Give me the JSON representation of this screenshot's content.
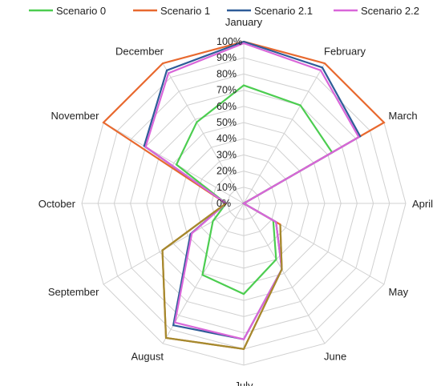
{
  "chart_data": {
    "type": "radar",
    "title": "",
    "categories": [
      "January",
      "February",
      "March",
      "April",
      "May",
      "June",
      "July",
      "August",
      "September",
      "October",
      "November",
      "December"
    ],
    "tick_labels": [
      "0%",
      "10%",
      "20%",
      "30%",
      "40%",
      "50%",
      "60%",
      "70%",
      "80%",
      "90%",
      "100%"
    ],
    "ylim": [
      0,
      100
    ],
    "grid": true,
    "legend_position": "top",
    "series": [
      {
        "name": "Scenario 0",
        "color": "#4ccd50",
        "values": [
          73,
          70,
          63,
          0,
          21,
          40,
          56,
          51,
          22,
          11,
          48,
          58
        ]
      },
      {
        "name": "Scenario 1",
        "color": "#e8692f",
        "values": [
          100,
          100,
          100,
          0,
          26,
          47,
          90,
          96,
          58,
          11,
          100,
          100
        ]
      },
      {
        "name": "Scenario 2.1",
        "color": "#2e5c98",
        "values": [
          100,
          97,
          83,
          0,
          23,
          47,
          84,
          87,
          38,
          11,
          71,
          95
        ]
      },
      {
        "name": "Scenario 2.2",
        "color": "#d966d9",
        "values": [
          99,
          95,
          82,
          0,
          23,
          47,
          84,
          85,
          37,
          11,
          70,
          93
        ]
      }
    ],
    "overlay_series": {
      "color": "#a48a2e",
      "values": [
        null,
        null,
        null,
        null,
        26,
        47,
        90,
        96,
        58,
        11,
        null,
        null
      ]
    }
  }
}
